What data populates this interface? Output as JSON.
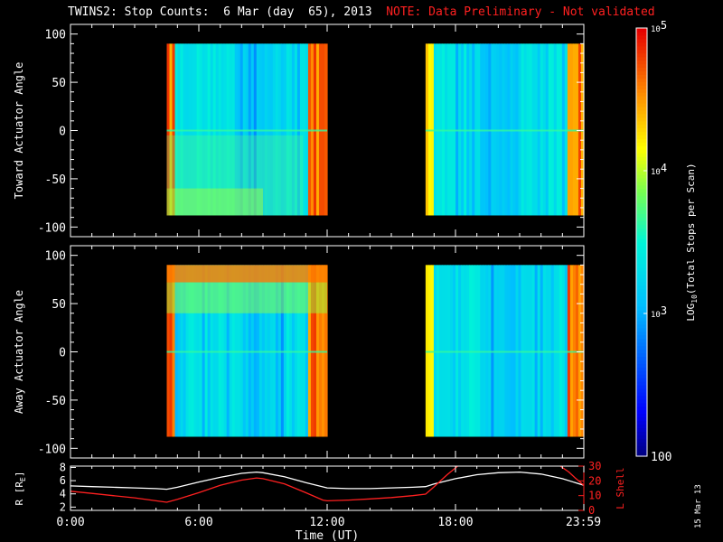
{
  "title": {
    "main": "TWINS2: Stop Counts:  6 Mar (day  65), 2013",
    "note": "NOTE: Data Preliminary - Not validated"
  },
  "stamp": "15 Mar 13",
  "colors": {
    "background": "#000000",
    "axes": "#ffffff",
    "note": "#ff2020",
    "r_line": "#ffffff",
    "lshell_line": "#ff2020"
  },
  "chart_data": [
    {
      "type": "heatmap",
      "id": "toward",
      "ylabel": "Toward Actuator Angle",
      "xlim_hours": [
        0,
        24
      ],
      "ylim": [
        -110,
        110
      ],
      "yticks": [
        -100,
        -50,
        0,
        50,
        100
      ],
      "data_intervals_hours": [
        [
          4.5,
          12.0
        ],
        [
          16.6,
          24.0
        ]
      ],
      "angle_range": [
        -88,
        90
      ],
      "zlim": [
        100,
        100000
      ],
      "zscale": "log",
      "grid": false
    },
    {
      "type": "heatmap",
      "id": "away",
      "ylabel": "Away Actuator Angle",
      "xlim_hours": [
        0,
        24
      ],
      "ylim": [
        -110,
        110
      ],
      "yticks": [
        -100,
        -50,
        0,
        50,
        100
      ],
      "data_intervals_hours": [
        [
          4.5,
          12.0
        ],
        [
          16.6,
          24.0
        ]
      ],
      "angle_range": [
        -88,
        90
      ],
      "zlim": [
        100,
        100000
      ],
      "zscale": "log",
      "grid": false
    },
    {
      "type": "line",
      "id": "ephemeris",
      "xlabel": "Time (UT)",
      "xticks": [
        "0:00",
        "6:00",
        "12:00",
        "18:00",
        "23:59"
      ],
      "xtick_hours": [
        0,
        6,
        12,
        18,
        23.98
      ],
      "left_axis": {
        "label": "R [R",
        "label_sub": "E",
        "label_end": "]",
        "ylim": [
          1.5,
          8.2
        ],
        "yticks": [
          2,
          4,
          6,
          8
        ]
      },
      "right_axis": {
        "label": "L Shell",
        "ylim": [
          0,
          30
        ],
        "yticks": [
          0,
          10,
          20,
          30
        ]
      },
      "series": [
        {
          "name": "R",
          "axis": "left",
          "x": [
            0,
            1,
            2,
            3,
            4,
            4.5,
            5,
            6,
            7,
            8,
            8.7,
            9,
            10,
            11,
            12,
            13,
            14,
            15,
            16,
            16.6,
            17,
            18,
            19,
            20,
            21,
            22,
            23,
            24
          ],
          "y": [
            5.2,
            5.1,
            5.0,
            4.9,
            4.8,
            4.7,
            5.0,
            5.8,
            6.5,
            7.1,
            7.3,
            7.2,
            6.6,
            5.7,
            4.9,
            4.8,
            4.8,
            4.9,
            5.0,
            5.1,
            5.5,
            6.3,
            6.9,
            7.2,
            7.3,
            7.0,
            6.3,
            5.3
          ]
        },
        {
          "name": "L Shell",
          "axis": "right",
          "x": [
            0,
            1,
            2,
            3,
            4,
            4.5,
            5,
            6,
            7,
            8,
            8.7,
            9,
            10,
            11,
            11.8,
            12,
            13,
            14,
            15,
            16,
            16.6,
            17,
            17.6,
            18.1
          ],
          "y": [
            13,
            11.5,
            10,
            8.5,
            6.5,
            5.5,
            7.5,
            12,
            17,
            20.5,
            22,
            21.5,
            18,
            12,
            7,
            6.5,
            7,
            7.8,
            8.7,
            10,
            11,
            16,
            24,
            30
          ],
          "x2": [
            22.9,
            23.3,
            23.6,
            24
          ],
          "y2": [
            30,
            26,
            22,
            17
          ]
        }
      ]
    }
  ],
  "colorbar": {
    "label": "LOG",
    "label_sub": "10",
    "label_end": "(Total Stops per Scan)",
    "ticks": [
      {
        "value": 100000,
        "mantissa": "10",
        "exp": "5"
      },
      {
        "value": 10000,
        "mantissa": "10",
        "exp": "4"
      },
      {
        "value": 1000,
        "mantissa": "10",
        "exp": "3"
      },
      {
        "value": 100,
        "mantissa": "100",
        "exp": ""
      }
    ]
  }
}
